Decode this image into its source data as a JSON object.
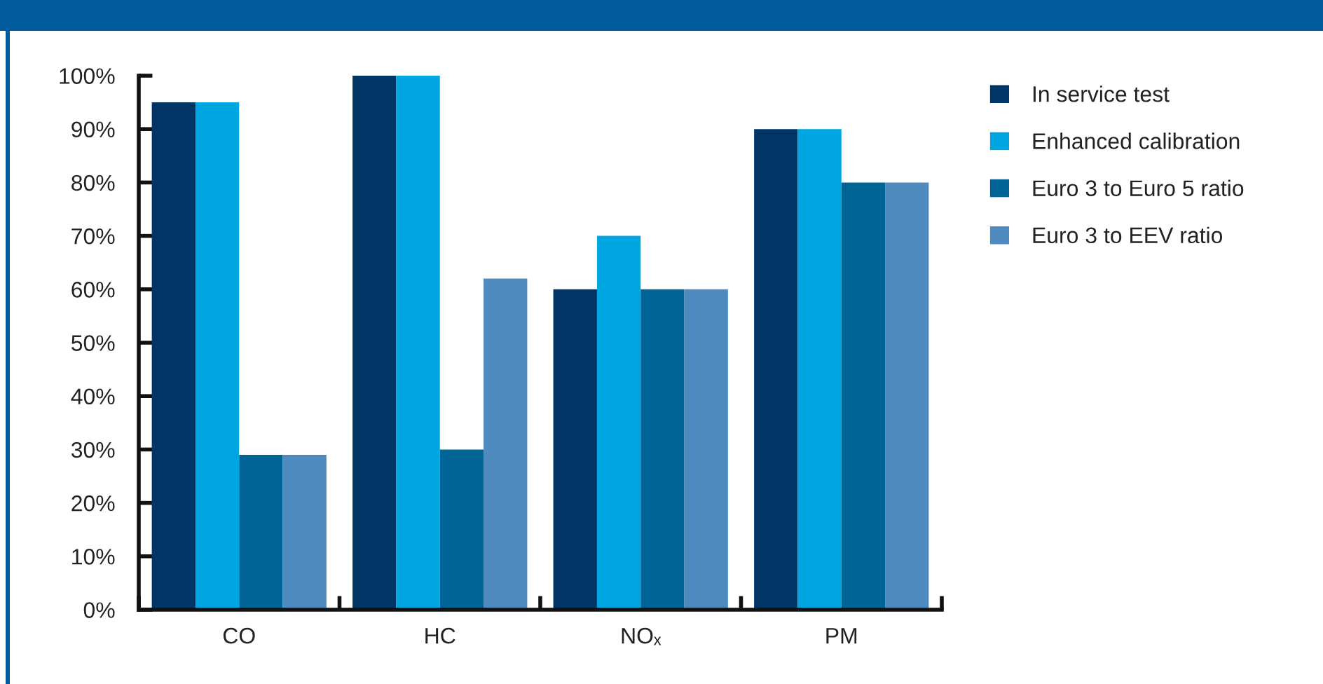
{
  "chart_data": {
    "type": "bar",
    "categories": [
      "CO",
      "HC",
      "NOₓ",
      "PM"
    ],
    "series": [
      {
        "name": "In service test",
        "color": "#003566",
        "values": [
          95,
          100,
          60,
          90
        ]
      },
      {
        "name": "Enhanced calibration",
        "color": "#00a6e2",
        "values": [
          95,
          100,
          70,
          90
        ]
      },
      {
        "name": "Euro 3 to Euro 5 ratio",
        "color": "#006496",
        "values": [
          29,
          30,
          60,
          80
        ]
      },
      {
        "name": "Euro 3 to EEV ratio",
        "color": "#4f8bbf",
        "values": [
          29,
          62,
          60,
          80
        ]
      }
    ],
    "ylim": [
      0,
      100
    ],
    "yticks": [
      {
        "value": 0,
        "label": "0%"
      },
      {
        "value": 10,
        "label": "10%"
      },
      {
        "value": 20,
        "label": "20%"
      },
      {
        "value": 30,
        "label": "30%"
      },
      {
        "value": 40,
        "label": "40%"
      },
      {
        "value": 50,
        "label": "50%"
      },
      {
        "value": 60,
        "label": "60%"
      },
      {
        "value": 70,
        "label": "70%"
      },
      {
        "value": 80,
        "label": "80%"
      },
      {
        "value": 90,
        "label": "90%"
      },
      {
        "value": 100,
        "label": "100%"
      }
    ],
    "legend": "top right"
  }
}
